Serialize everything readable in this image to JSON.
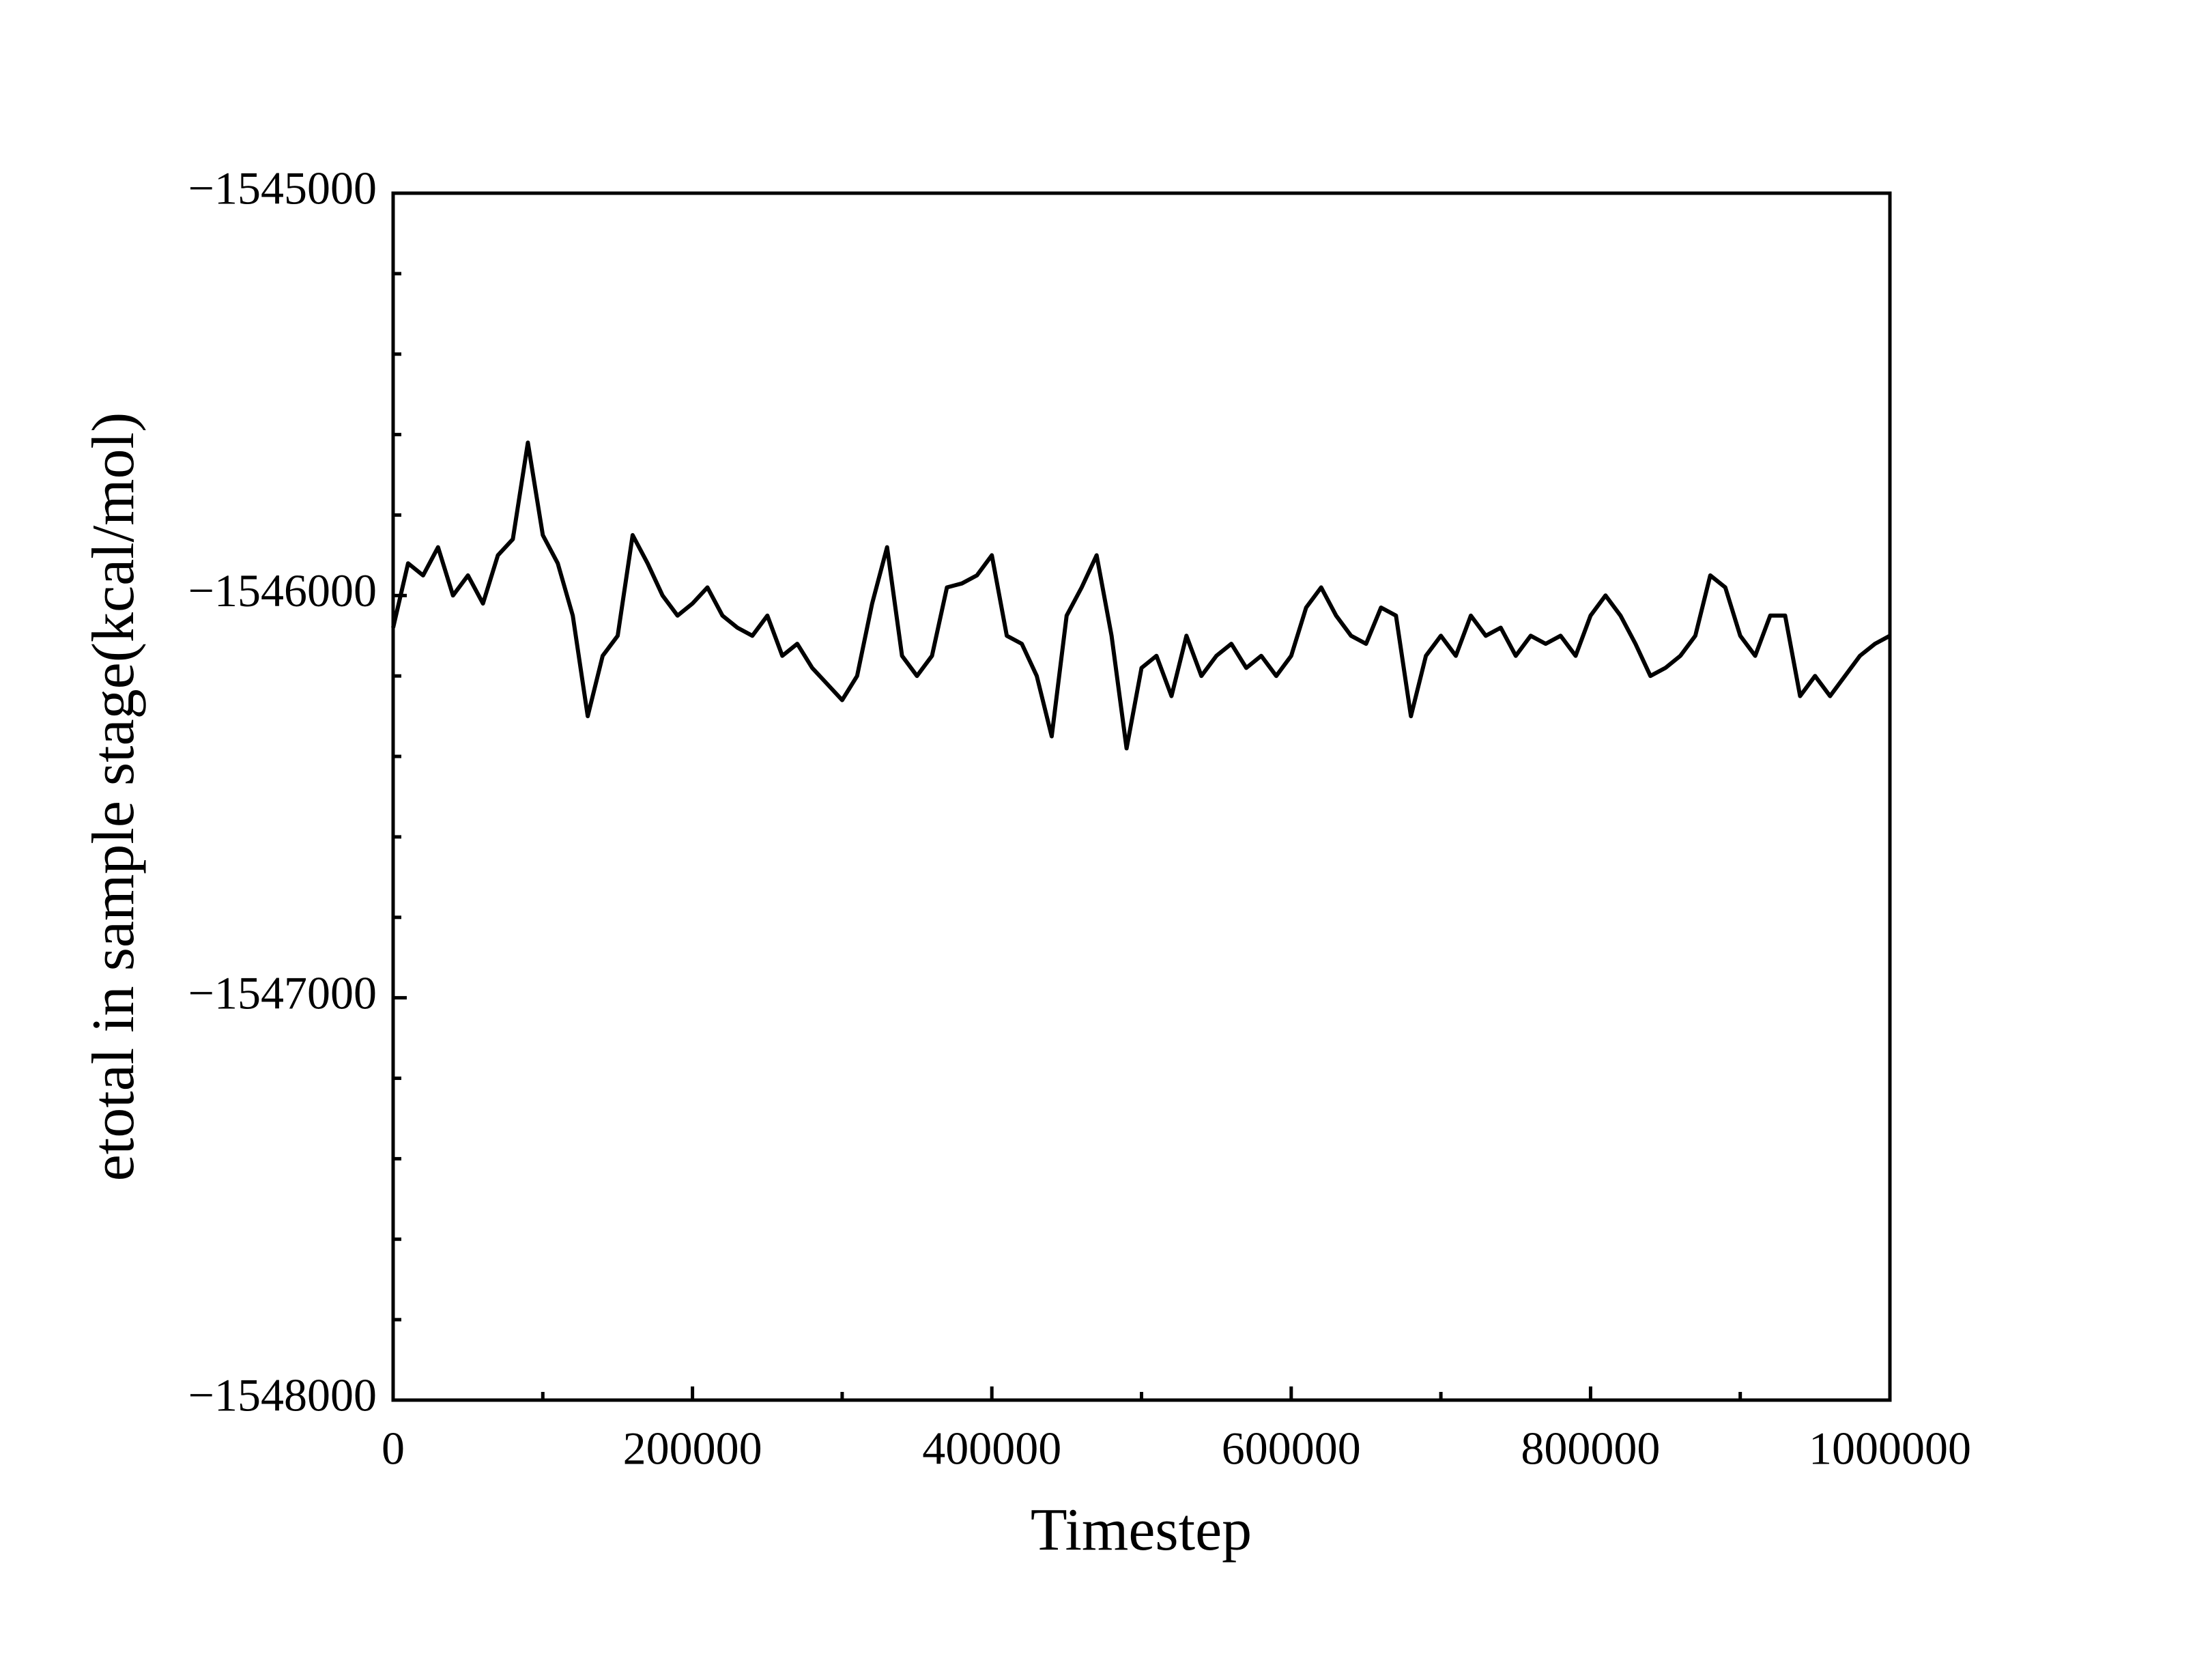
{
  "chart_data": {
    "type": "line",
    "xlabel": "Timestep",
    "ylabel": "etotal in sample stage(kcal/mol)",
    "xlim": [
      0,
      1000000
    ],
    "ylim": [
      -1548000,
      -1545000
    ],
    "xticks": [
      0,
      200000,
      400000,
      600000,
      800000,
      1000000
    ],
    "yticks": [
      {
        "value": -1548000,
        "label": "−1548000"
      },
      {
        "value": -1547000,
        "label": "−1547000"
      },
      {
        "value": -1546000,
        "label": "−1546000"
      },
      {
        "value": -1545000,
        "label": "−1545000"
      }
    ],
    "xminorticks": [
      100000,
      300000,
      500000,
      700000,
      900000
    ],
    "yminorticks": [
      -1547800,
      -1547600,
      -1547400,
      -1547200,
      -1546800,
      -1546600,
      -1546400,
      -1546200,
      -1545800,
      -1545600,
      -1545400,
      -1545200
    ],
    "grid": false,
    "series": [
      {
        "color": "#000000",
        "x": [
          0,
          10000,
          20000,
          30000,
          40000,
          50000,
          60000,
          70000,
          80000,
          90000,
          100000,
          110000,
          120000,
          130000,
          140000,
          150000,
          160000,
          170000,
          180000,
          190000,
          200000,
          210000,
          220000,
          230000,
          240000,
          250000,
          260000,
          270000,
          280000,
          290000,
          300000,
          310000,
          320000,
          330000,
          340000,
          350000,
          360000,
          370000,
          380000,
          390000,
          400000,
          410000,
          420000,
          430000,
          440000,
          450000,
          460000,
          470000,
          480000,
          490000,
          500000,
          510000,
          520000,
          530000,
          540000,
          550000,
          560000,
          570000,
          580000,
          590000,
          600000,
          610000,
          620000,
          630000,
          640000,
          650000,
          660000,
          670000,
          680000,
          690000,
          700000,
          710000,
          720000,
          730000,
          740000,
          750000,
          760000,
          770000,
          780000,
          790000,
          800000,
          810000,
          820000,
          830000,
          840000,
          850000,
          860000,
          870000,
          880000,
          890000,
          900000,
          910000,
          920000,
          930000,
          940000,
          950000,
          960000,
          970000,
          980000,
          990000,
          1000000
        ],
        "values": [
          -1546080,
          -1545920,
          -1545950,
          -1545880,
          -1546000,
          -1545950,
          -1546020,
          -1545900,
          -1545860,
          -1545620,
          -1545850,
          -1545920,
          -1546050,
          -1546300,
          -1546150,
          -1546100,
          -1545850,
          -1545920,
          -1546000,
          -1546050,
          -1546020,
          -1545980,
          -1546050,
          -1546080,
          -1546100,
          -1546050,
          -1546150,
          -1546120,
          -1546180,
          -1546220,
          -1546260,
          -1546200,
          -1546020,
          -1545880,
          -1546150,
          -1546200,
          -1546150,
          -1545980,
          -1545970,
          -1545950,
          -1545900,
          -1546100,
          -1546120,
          -1546200,
          -1546350,
          -1546050,
          -1545980,
          -1545900,
          -1546100,
          -1546380,
          -1546180,
          -1546150,
          -1546250,
          -1546100,
          -1546200,
          -1546150,
          -1546120,
          -1546180,
          -1546150,
          -1546200,
          -1546150,
          -1546030,
          -1545980,
          -1546050,
          -1546100,
          -1546120,
          -1546030,
          -1546050,
          -1546300,
          -1546150,
          -1546100,
          -1546150,
          -1546050,
          -1546100,
          -1546080,
          -1546150,
          -1546100,
          -1546120,
          -1546100,
          -1546150,
          -1546050,
          -1546000,
          -1546050,
          -1546120,
          -1546200,
          -1546180,
          -1546150,
          -1546100,
          -1545950,
          -1545980,
          -1546100,
          -1546150,
          -1546050,
          -1546050,
          -1546250,
          -1546200,
          -1546250,
          -1546200,
          -1546150,
          -1546120,
          -1546100
        ]
      }
    ]
  }
}
